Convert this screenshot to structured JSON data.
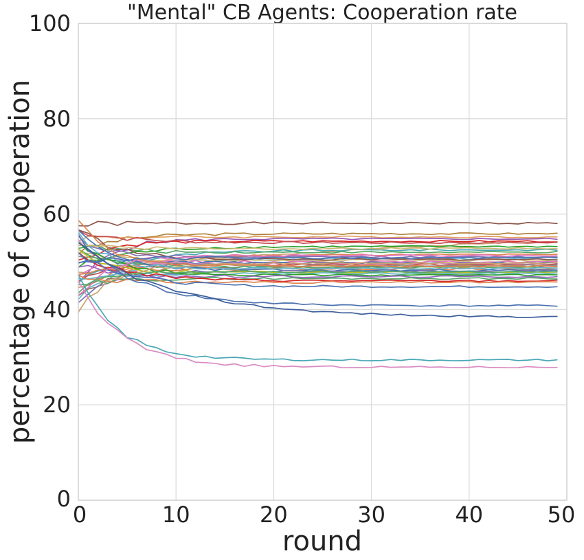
{
  "chart_data": {
    "type": "line",
    "title": "\"Mental\" CB Agents: Cooperation rate",
    "xlabel": "round",
    "ylabel": "percentage of cooperation",
    "xlim": [
      0,
      50
    ],
    "ylim": [
      0,
      100
    ],
    "xticks": [
      "0",
      "10",
      "20",
      "30",
      "40",
      "50"
    ],
    "yticks": [
      "0",
      "20",
      "40",
      "60",
      "80",
      "100"
    ],
    "grid": true,
    "legend": "none",
    "x": [
      0,
      1,
      2,
      3,
      4,
      5,
      6,
      7,
      8,
      9,
      10,
      11,
      12,
      13,
      14,
      15,
      16,
      17,
      18,
      19,
      20,
      21,
      22,
      23,
      24,
      25,
      26,
      27,
      28,
      29,
      30,
      31,
      32,
      33,
      34,
      35,
      36,
      37,
      38,
      39,
      40,
      41,
      42,
      43,
      44,
      45,
      46,
      47,
      48,
      49
    ],
    "series_params": [
      {
        "start": 57.5,
        "end": 58.1,
        "tau": 2.0,
        "color": "#8c564b"
      },
      {
        "start": 48.0,
        "end": 57.0,
        "tau": 40.0,
        "color": "#c9a26b"
      },
      {
        "start": 52.0,
        "end": 55.9,
        "tau": 4.0,
        "color": "#b0813a"
      },
      {
        "start": 55.0,
        "end": 55.2,
        "tau": 3.0,
        "color": "#e0a060"
      },
      {
        "start": 45.0,
        "end": 54.8,
        "tau": 3.0,
        "color": "#9b59b6"
      },
      {
        "start": 50.0,
        "end": 54.3,
        "tau": 3.0,
        "color": "#d62728"
      },
      {
        "start": 56.5,
        "end": 54.0,
        "tau": 5.0,
        "color": "#c44e52"
      },
      {
        "start": 49.0,
        "end": 53.2,
        "tau": 5.0,
        "color": "#2ca02c"
      },
      {
        "start": 46.0,
        "end": 52.5,
        "tau": 6.0,
        "color": "#4aa7b5"
      },
      {
        "start": 53.5,
        "end": 52.0,
        "tau": 4.0,
        "color": "#55a868"
      },
      {
        "start": 44.0,
        "end": 51.5,
        "tau": 5.0,
        "color": "#dd8452"
      },
      {
        "start": 55.0,
        "end": 51.0,
        "tau": 3.0,
        "color": "#8172b2"
      },
      {
        "start": 42.0,
        "end": 50.6,
        "tau": 4.0,
        "color": "#64b5cd"
      },
      {
        "start": 52.0,
        "end": 50.3,
        "tau": 3.0,
        "color": "#ccb974"
      },
      {
        "start": 47.5,
        "end": 50.0,
        "tau": 3.0,
        "color": "#e377c2"
      },
      {
        "start": 50.5,
        "end": 49.8,
        "tau": 4.0,
        "color": "#4c72b0"
      },
      {
        "start": 54.0,
        "end": 49.6,
        "tau": 3.0,
        "color": "#da8bc3"
      },
      {
        "start": 45.5,
        "end": 49.4,
        "tau": 3.0,
        "color": "#c44e52"
      },
      {
        "start": 51.0,
        "end": 49.2,
        "tau": 5.0,
        "color": "#8c8c8c"
      },
      {
        "start": 43.0,
        "end": 49.0,
        "tau": 4.0,
        "color": "#937860"
      },
      {
        "start": 53.0,
        "end": 48.8,
        "tau": 3.0,
        "color": "#55a868"
      },
      {
        "start": 48.0,
        "end": 48.5,
        "tau": 2.0,
        "color": "#dd8452"
      },
      {
        "start": 56.0,
        "end": 48.2,
        "tau": 4.0,
        "color": "#4c72b0"
      },
      {
        "start": 41.0,
        "end": 48.0,
        "tau": 3.0,
        "color": "#8172b2"
      },
      {
        "start": 52.5,
        "end": 47.8,
        "tau": 3.0,
        "color": "#bcbd22"
      },
      {
        "start": 46.5,
        "end": 47.5,
        "tau": 3.0,
        "color": "#64b5cd"
      },
      {
        "start": 54.5,
        "end": 47.2,
        "tau": 4.0,
        "color": "#2ca02c"
      },
      {
        "start": 49.5,
        "end": 46.9,
        "tau": 3.0,
        "color": "#9467bd"
      },
      {
        "start": 44.5,
        "end": 46.5,
        "tau": 3.0,
        "color": "#55a868"
      },
      {
        "start": 51.5,
        "end": 46.0,
        "tau": 5.0,
        "color": "#d62728"
      },
      {
        "start": 47.0,
        "end": 45.7,
        "tau": 4.0,
        "color": "#dd8452"
      },
      {
        "start": 52.0,
        "end": 44.8,
        "tau": 5.0,
        "color": "#4c72b0"
      },
      {
        "start": 57.0,
        "end": 50.5,
        "tau": 4.0,
        "color": "#8c564b"
      },
      {
        "start": 40.0,
        "end": 49.7,
        "tau": 3.5,
        "color": "#c9a26b"
      },
      {
        "start": 55.5,
        "end": 48.6,
        "tau": 3.0,
        "color": "#64b5cd"
      },
      {
        "start": 42.5,
        "end": 51.3,
        "tau": 3.0,
        "color": "#e377c2"
      },
      {
        "start": 58.5,
        "end": 49.1,
        "tau": 3.0,
        "color": "#dd8452"
      },
      {
        "start": 43.5,
        "end": 47.9,
        "tau": 2.5,
        "color": "#55a868"
      },
      {
        "start": 50.0,
        "end": 50.8,
        "tau": 2.5,
        "color": "#4c72b0"
      },
      {
        "start": 54.0,
        "end": 52.8,
        "tau": 3.0,
        "color": "#ccb974"
      },
      {
        "start": 55.0,
        "end": 40.8,
        "tau": 6.0,
        "color": "#4c72b0"
      },
      {
        "start": 53.5,
        "end": 38.3,
        "tau": 10.0,
        "color": "#3e5f9a"
      },
      {
        "start": 47.0,
        "end": 29.4,
        "tau": 4.0,
        "color": "#4aa7b5"
      },
      {
        "start": 46.0,
        "end": 27.9,
        "tau": 4.5,
        "color": "#da8bc3"
      }
    ]
  }
}
